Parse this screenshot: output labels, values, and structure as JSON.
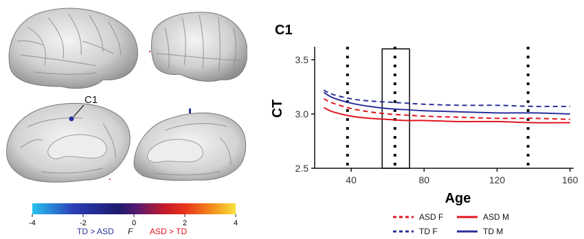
{
  "brain_panel": {
    "region_label": "C1",
    "colorbar": {
      "ticks": [
        "-4",
        "-2",
        "0",
        "2",
        "4"
      ],
      "colors": [
        "#29c3ef",
        "#2b3fb7",
        "#1c1a6e",
        "#5a1a6e",
        "#c41a2a",
        "#e8331c",
        "#f38a1c",
        "#f9e23c"
      ]
    },
    "legend_td_asd": "TD > ASD",
    "legend_f": "F",
    "legend_asd_td": "ASD > TD",
    "td_color": "#2a2f9a",
    "asd_color": "#e0141e"
  },
  "chart_data": {
    "type": "line",
    "title": "C1",
    "xlabel": "Age",
    "ylabel": "CT",
    "xlim": [
      20,
      162
    ],
    "ylim": [
      2.5,
      3.62
    ],
    "xticks": [
      40,
      80,
      120,
      160
    ],
    "xtick_labels": [
      "40",
      "80",
      "120",
      "160"
    ],
    "yticks": [
      2.5,
      3.0,
      3.5
    ],
    "ytick_labels": [
      "2.5",
      "3.0",
      "3.5"
    ],
    "x": [
      25,
      30,
      40,
      50,
      60,
      70,
      80,
      100,
      120,
      140,
      160
    ],
    "series": [
      {
        "name": "ASD F",
        "color": "#e0141e",
        "dash": true,
        "values": [
          3.14,
          3.1,
          3.05,
          3.02,
          3.0,
          2.99,
          2.98,
          2.97,
          2.96,
          2.96,
          2.95
        ]
      },
      {
        "name": "ASD M",
        "color": "#e0141e",
        "dash": false,
        "values": [
          3.06,
          3.02,
          2.98,
          2.96,
          2.95,
          2.94,
          2.94,
          2.93,
          2.93,
          2.92,
          2.92
        ]
      },
      {
        "name": "TD F",
        "color": "#2a2f9a",
        "dash": true,
        "values": [
          3.22,
          3.18,
          3.14,
          3.12,
          3.11,
          3.1,
          3.09,
          3.08,
          3.08,
          3.07,
          3.07
        ]
      },
      {
        "name": "TD M",
        "color": "#2a2f9a",
        "dash": false,
        "values": [
          3.2,
          3.15,
          3.1,
          3.07,
          3.05,
          3.04,
          3.03,
          3.02,
          3.01,
          3.01,
          3.0
        ]
      }
    ],
    "vlines": [
      38,
      64,
      137
    ],
    "highlight_box": {
      "x": [
        57,
        72
      ],
      "y": [
        2.5,
        3.6
      ]
    },
    "legend_placement": "bottom",
    "grid": false
  }
}
